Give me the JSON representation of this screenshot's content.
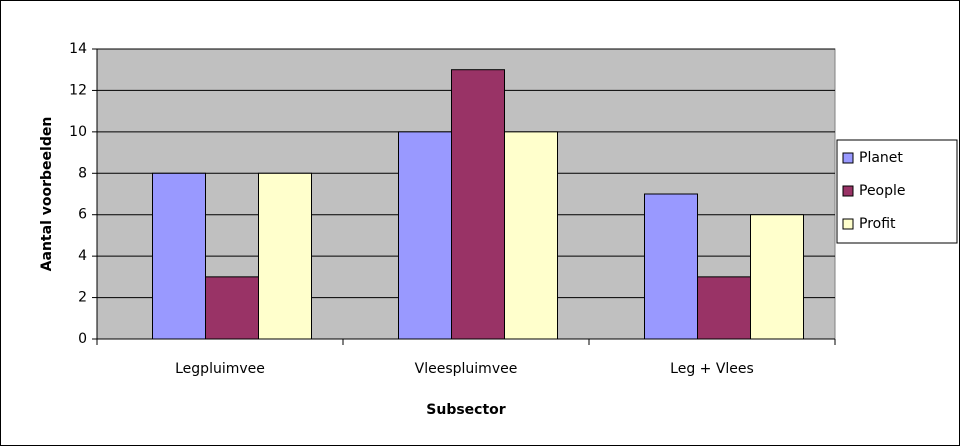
{
  "chart_data": {
    "type": "bar",
    "categories": [
      "Legpluimvee",
      "Vleespluimvee",
      "Leg + Vlees"
    ],
    "series": [
      {
        "name": "Planet",
        "color": "#9999ff",
        "values": [
          8,
          10,
          7
        ]
      },
      {
        "name": "People",
        "color": "#993366",
        "values": [
          3,
          13,
          3
        ]
      },
      {
        "name": "Profit",
        "color": "#ffffcc",
        "values": [
          8,
          10,
          6
        ]
      }
    ],
    "x_label": "Subsector",
    "y_label": "Aantal voorbeelden",
    "ylim": [
      0,
      14
    ],
    "yticks": [
      0,
      2,
      4,
      6,
      8,
      10,
      12,
      14
    ],
    "grid": true,
    "legend": "right"
  }
}
